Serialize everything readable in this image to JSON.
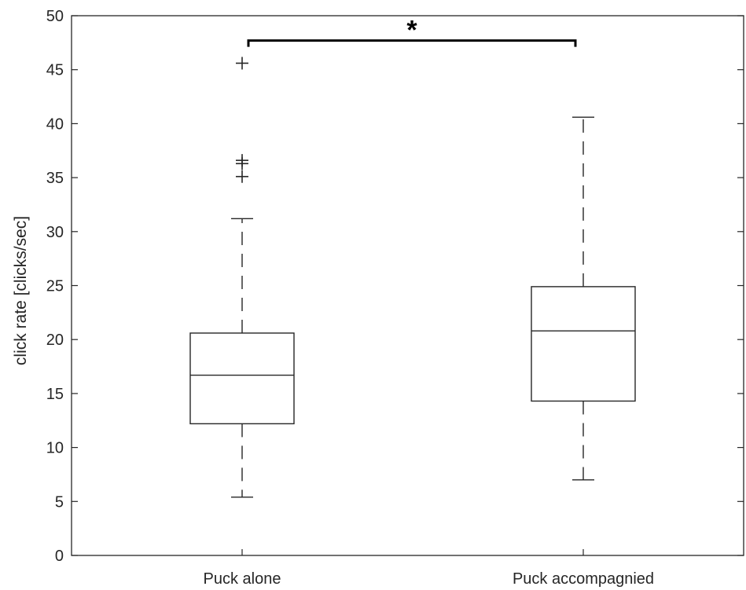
{
  "chart_data": {
    "type": "box",
    "title": "",
    "xlabel": "",
    "ylabel": "click rate [clicks/sec]",
    "ylim": [
      0,
      50
    ],
    "yticks": [
      0,
      5,
      10,
      15,
      20,
      25,
      30,
      35,
      40,
      45,
      50
    ],
    "grid": false,
    "categories": [
      "Puck alone",
      "Puck accompagnied"
    ],
    "boxes": [
      {
        "category": "Puck alone",
        "whisker_low": 5.4,
        "q1": 12.2,
        "median": 16.7,
        "q3": 20.6,
        "whisker_high": 31.2,
        "outliers": [
          35.1,
          36.3,
          36.6,
          45.6
        ]
      },
      {
        "category": "Puck accompagnied",
        "whisker_low": 7.0,
        "q1": 14.3,
        "median": 20.8,
        "q3": 24.9,
        "whisker_high": 40.6,
        "outliers": []
      }
    ],
    "significance": {
      "from": "Puck alone",
      "to": "Puck accompagnied",
      "y": 47.7,
      "label": "*"
    }
  }
}
